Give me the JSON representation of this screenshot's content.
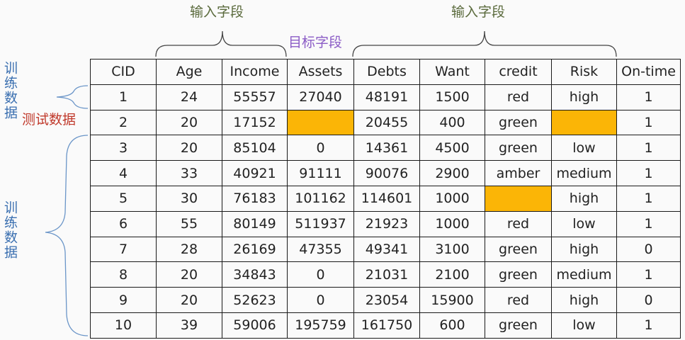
{
  "annotations": {
    "input_fields_left": "输入字段",
    "input_fields_right": "输入字段",
    "target_field": "目标字段",
    "test_data": "测试数据",
    "train_data_top": "训练数据",
    "train_data_bottom": "训练数据"
  },
  "colors": {
    "highlight": "#fbb506",
    "input_label": "#5a6a3c",
    "target_label": "#8b5cc6",
    "test_label": "#c0392b",
    "train_label": "#3a6fb0"
  },
  "table": {
    "headers": [
      "CID",
      "Age",
      "Income",
      "Assets",
      "Debts",
      "Want",
      "credit",
      "Risk",
      "On-time"
    ],
    "rows": [
      [
        "1",
        "24",
        "55557",
        "27040",
        "48191",
        "1500",
        "red",
        "high",
        "1"
      ],
      [
        "2",
        "20",
        "17152",
        "",
        "20455",
        "400",
        "green",
        "",
        "1"
      ],
      [
        "3",
        "20",
        "85104",
        "0",
        "14361",
        "4500",
        "green",
        "low",
        "1"
      ],
      [
        "4",
        "33",
        "40921",
        "91111",
        "90076",
        "2900",
        "amber",
        "medium",
        "1"
      ],
      [
        "5",
        "30",
        "76183",
        "101162",
        "114601",
        "1000",
        "",
        "high",
        "1"
      ],
      [
        "6",
        "55",
        "80149",
        "511937",
        "21923",
        "1000",
        "red",
        "low",
        "1"
      ],
      [
        "7",
        "28",
        "26169",
        "47355",
        "49341",
        "3100",
        "green",
        "high",
        "0"
      ],
      [
        "8",
        "20",
        "34843",
        "0",
        "21031",
        "2100",
        "green",
        "medium",
        "1"
      ],
      [
        "9",
        "20",
        "52623",
        "0",
        "23054",
        "15900",
        "red",
        "high",
        "0"
      ],
      [
        "10",
        "39",
        "59006",
        "195759",
        "161750",
        "600",
        "green",
        "low",
        "1"
      ]
    ]
  }
}
